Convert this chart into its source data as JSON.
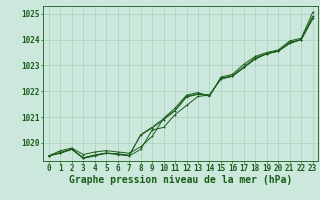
{
  "title": "Graphe pression niveau de la mer (hPa)",
  "bg_color": "#cce8dc",
  "grid_color": "#aacfbe",
  "line_color": "#1a5c1a",
  "x_labels": [
    "0",
    "1",
    "2",
    "3",
    "4",
    "5",
    "6",
    "7",
    "8",
    "9",
    "10",
    "11",
    "12",
    "13",
    "14",
    "15",
    "16",
    "17",
    "18",
    "19",
    "20",
    "21",
    "22",
    "23"
  ],
  "ylim": [
    1019.3,
    1025.3
  ],
  "yticks": [
    1020,
    1021,
    1022,
    1023,
    1024,
    1025
  ],
  "series1": [
    1019.5,
    1019.7,
    1019.8,
    1019.55,
    1019.65,
    1019.7,
    1019.65,
    1019.6,
    1019.85,
    1020.25,
    1020.95,
    1021.35,
    1021.85,
    1021.95,
    1021.8,
    1022.55,
    1022.65,
    1023.05,
    1023.35,
    1023.5,
    1023.6,
    1023.95,
    1024.05,
    1025.05
  ],
  "series2": [
    1019.5,
    1019.6,
    1019.75,
    1019.4,
    1019.5,
    1019.6,
    1019.55,
    1019.5,
    1019.75,
    1020.5,
    1020.6,
    1021.1,
    1021.45,
    1021.8,
    1021.85,
    1022.5,
    1022.6,
    1022.95,
    1023.3,
    1023.45,
    1023.55,
    1023.9,
    1024.0,
    1024.9
  ],
  "series3": [
    1019.5,
    1019.62,
    1019.75,
    1019.42,
    1019.52,
    1019.6,
    1019.58,
    1019.52,
    1020.3,
    1020.58,
    1020.9,
    1021.25,
    1021.78,
    1021.88,
    1021.84,
    1022.48,
    1022.58,
    1022.92,
    1023.25,
    1023.45,
    1023.55,
    1023.85,
    1024.0,
    1024.82
  ],
  "series4": [
    1019.5,
    1019.63,
    1019.77,
    1019.42,
    1019.54,
    1019.61,
    1019.57,
    1019.51,
    1020.32,
    1020.61,
    1020.93,
    1021.26,
    1021.8,
    1021.9,
    1021.86,
    1022.48,
    1022.58,
    1022.92,
    1023.26,
    1023.46,
    1023.56,
    1023.86,
    1024.0,
    1024.8
  ],
  "title_fontsize": 7,
  "tick_fontsize": 5.5
}
